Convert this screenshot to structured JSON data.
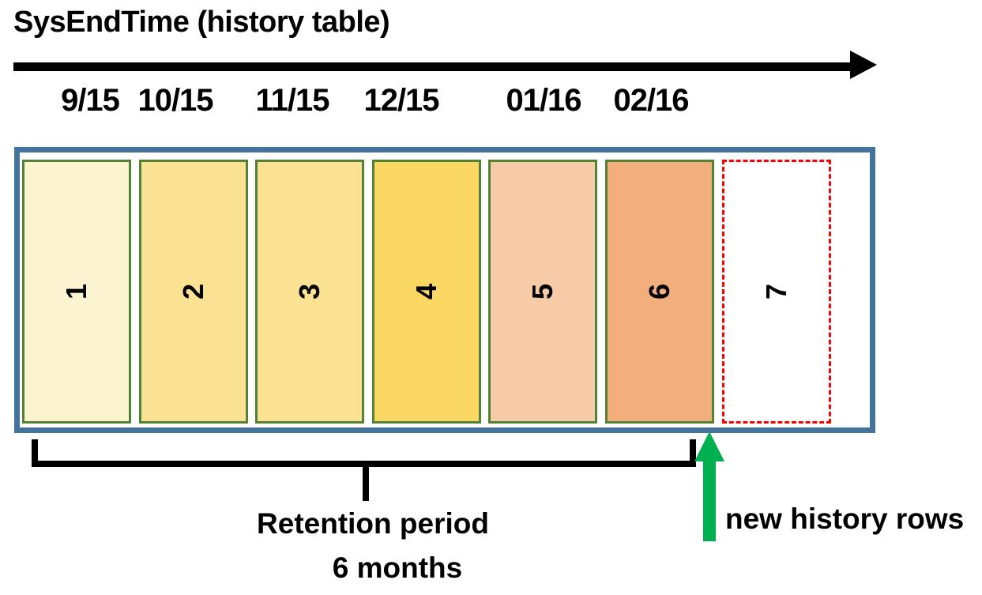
{
  "title": "SysEndTime (history table)",
  "timeline": {
    "dates": [
      "9/15",
      "10/15",
      "11/15",
      "12/15",
      "01/16",
      "02/16"
    ],
    "arrow_color": "#000000"
  },
  "history_table": {
    "container_border_color": "#44739E",
    "partitions": [
      {
        "label": "1",
        "fill": "#FCF3D0",
        "border_color": "#538135",
        "border_style": "solid"
      },
      {
        "label": "2",
        "fill": "#FBE293",
        "border_color": "#538135",
        "border_style": "solid"
      },
      {
        "label": "3",
        "fill": "#FBE293",
        "border_color": "#538135",
        "border_style": "solid"
      },
      {
        "label": "4",
        "fill": "#FBD763",
        "border_color": "#538135",
        "border_style": "solid"
      },
      {
        "label": "5",
        "fill": "#F7CAA8",
        "border_color": "#538135",
        "border_style": "solid"
      },
      {
        "label": "6",
        "fill": "#F3AE7D",
        "border_color": "#538135",
        "border_style": "solid"
      },
      {
        "label": "7",
        "fill": "#FFFFFF",
        "border_color": "#FF0000",
        "border_style": "dashed"
      }
    ]
  },
  "retention": {
    "line1": "Retention period",
    "line2": "6 months",
    "bracket_color": "#000000"
  },
  "annotation": {
    "label": "new history rows",
    "arrow_color": "#00B050"
  }
}
